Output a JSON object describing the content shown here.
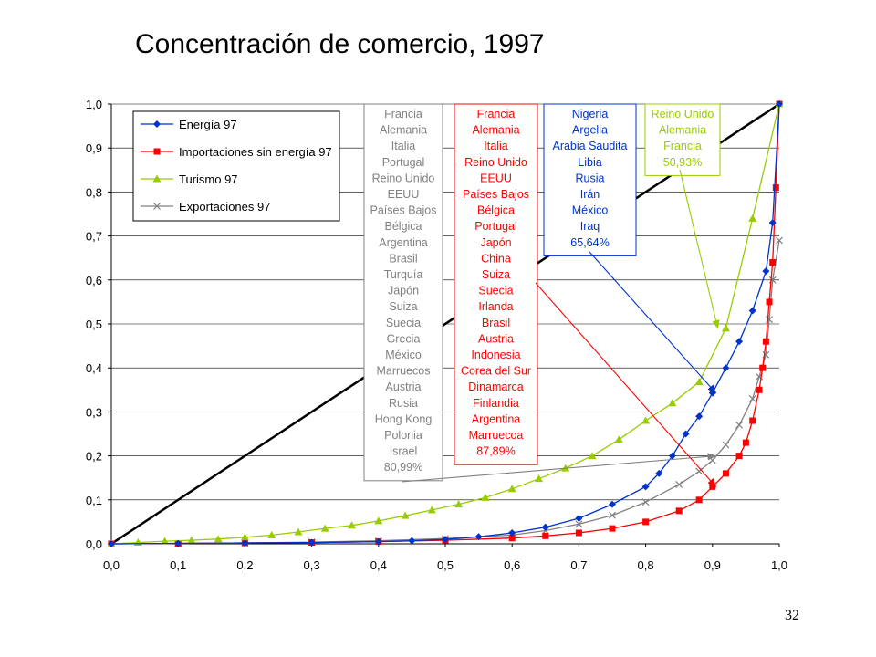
{
  "slide": {
    "title": "Concentración de comercio, 1997",
    "page_number": "32"
  },
  "colors": {
    "energia": "#0033CC",
    "importaciones": "#FF0000",
    "turismo": "#99CC00",
    "exportaciones": "#808080",
    "diagonal": "#000000"
  },
  "chart_data": {
    "type": "line",
    "title": "Concentración de comercio, 1997",
    "xlabel": "",
    "ylabel": "",
    "xlim": [
      0,
      1
    ],
    "ylim": [
      0,
      1
    ],
    "x_ticks": [
      "0,0",
      "0,1",
      "0,2",
      "0,3",
      "0,4",
      "0,5",
      "0,6",
      "0,7",
      "0,8",
      "0,9",
      "1,0"
    ],
    "y_ticks": [
      "0,0",
      "0,1",
      "0,2",
      "0,3",
      "0,4",
      "0,5",
      "0,6",
      "0,7",
      "0,8",
      "0,9",
      "1,0"
    ],
    "grid": "horizontal",
    "legend_position": "top-left",
    "series": [
      {
        "name": "Energía 97",
        "marker": "diamond",
        "x": [
          0.0,
          0.1,
          0.2,
          0.3,
          0.4,
          0.45,
          0.5,
          0.55,
          0.6,
          0.65,
          0.7,
          0.75,
          0.8,
          0.82,
          0.84,
          0.86,
          0.88,
          0.9,
          0.92,
          0.94,
          0.96,
          0.98,
          0.99,
          1.0
        ],
        "y": [
          0.0,
          0.001,
          0.002,
          0.003,
          0.005,
          0.007,
          0.01,
          0.016,
          0.025,
          0.038,
          0.058,
          0.09,
          0.13,
          0.16,
          0.2,
          0.25,
          0.29,
          0.343,
          0.4,
          0.46,
          0.53,
          0.62,
          0.73,
          1.0
        ]
      },
      {
        "name": "Importaciones sin energía 97",
        "marker": "square",
        "x": [
          0.0,
          0.1,
          0.2,
          0.3,
          0.4,
          0.5,
          0.6,
          0.65,
          0.7,
          0.75,
          0.8,
          0.85,
          0.88,
          0.9,
          0.92,
          0.94,
          0.95,
          0.96,
          0.97,
          0.975,
          0.98,
          0.985,
          0.99,
          0.995,
          1.0
        ],
        "y": [
          0.0,
          0.001,
          0.002,
          0.003,
          0.005,
          0.008,
          0.013,
          0.018,
          0.025,
          0.035,
          0.05,
          0.075,
          0.1,
          0.13,
          0.16,
          0.2,
          0.23,
          0.28,
          0.35,
          0.4,
          0.46,
          0.55,
          0.64,
          0.81,
          1.0
        ]
      },
      {
        "name": "Turismo 97",
        "marker": "triangle",
        "x": [
          0.0,
          0.04,
          0.08,
          0.12,
          0.16,
          0.2,
          0.24,
          0.28,
          0.32,
          0.36,
          0.4,
          0.44,
          0.48,
          0.52,
          0.56,
          0.6,
          0.64,
          0.68,
          0.72,
          0.76,
          0.8,
          0.84,
          0.88,
          0.92,
          0.96,
          1.0
        ],
        "y": [
          0.0,
          0.003,
          0.006,
          0.008,
          0.011,
          0.015,
          0.02,
          0.027,
          0.035,
          0.042,
          0.052,
          0.064,
          0.077,
          0.09,
          0.105,
          0.125,
          0.148,
          0.172,
          0.2,
          0.237,
          0.28,
          0.32,
          0.368,
          0.49,
          0.74,
          1.0
        ]
      },
      {
        "name": "Exportaciones 97",
        "marker": "x",
        "x": [
          0.0,
          0.1,
          0.2,
          0.3,
          0.4,
          0.5,
          0.6,
          0.65,
          0.7,
          0.75,
          0.8,
          0.85,
          0.88,
          0.9,
          0.92,
          0.94,
          0.96,
          0.97,
          0.98,
          0.985,
          0.99,
          1.0
        ],
        "y": [
          0.0,
          0.001,
          0.002,
          0.004,
          0.007,
          0.012,
          0.02,
          0.03,
          0.045,
          0.065,
          0.095,
          0.135,
          0.165,
          0.19,
          0.225,
          0.27,
          0.33,
          0.38,
          0.43,
          0.51,
          0.6,
          0.69
        ]
      }
    ],
    "diagonal": {
      "x": [
        0,
        1
      ],
      "y": [
        0,
        1
      ]
    },
    "annotations": [
      {
        "series": "Exportaciones 97",
        "color": "#808080",
        "lines": [
          "Francia",
          "Alemania",
          "Italia",
          "Portugal",
          "Reino Unido",
          "EEUU",
          "Países Bajos",
          "Bélgica",
          "Argentina",
          "Brasil",
          "Turquía",
          "Japón",
          "Suiza",
          "Suecia",
          "Grecia",
          "México",
          "Marruecos",
          "Austria",
          "Rusia",
          "Hong Kong",
          "Polonia",
          "Israel",
          "80,99%"
        ],
        "arrow_to": [
          0.905,
          0.2
        ]
      },
      {
        "series": "Importaciones sin energía 97",
        "color": "#FF0000",
        "lines": [
          "Francia",
          "Alemania",
          "Italia",
          "Reino Unido",
          "EEUU",
          "Países Bajos",
          "Bélgica",
          "Portugal",
          "Japón",
          "China",
          "Suiza",
          "Suecia",
          "Irlanda",
          "Brasil",
          "Austria",
          "Indonesia",
          "Corea del Sur",
          "Dinamarca",
          "Finlandia",
          "Argentina",
          "Marruecoa",
          "87,89%"
        ],
        "arrow_to": [
          0.905,
          0.13
        ]
      },
      {
        "series": "Energía 97",
        "color": "#0033CC",
        "lines": [
          "Nigeria",
          "Argelia",
          "Arabia Saudita",
          "Libia",
          "Rusia",
          "Irán",
          "México",
          "Iraq",
          "65,64%"
        ],
        "arrow_to": [
          0.905,
          0.343
        ]
      },
      {
        "series": "Turismo 97",
        "color": "#99CC00",
        "lines": [
          "Reino Unido",
          "Alemania",
          "Francia",
          "50,93%"
        ],
        "arrow_to": [
          0.908,
          0.49
        ]
      }
    ]
  }
}
